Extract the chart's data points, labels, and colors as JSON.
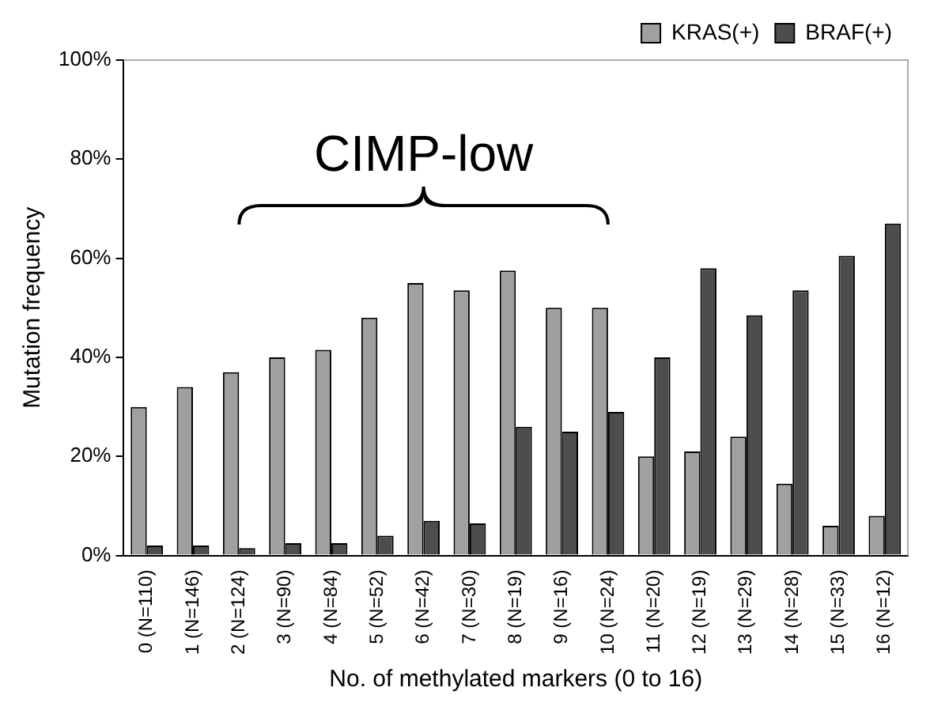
{
  "chart_data": {
    "type": "bar",
    "ylabel": "Mutation frequency",
    "xlabel": "No. of methylated markers (0 to 16)",
    "categories": [
      "0 (N=110)",
      "1 (N=146)",
      "2 (N=124)",
      "3 (N=90)",
      "4 (N=84)",
      "5 (N=52)",
      "6 (N=42)",
      "7 (N=30)",
      "8 (N=19)",
      "9 (N=16)",
      "10 (N=24)",
      "11 (N=20)",
      "12 (N=19)",
      "13 (N=29)",
      "14 (N=28)",
      "15 (N=33)",
      "16 (N=12)"
    ],
    "series": [
      {
        "name": "KRAS(+)",
        "color": "#a0a0a0",
        "values": [
          30,
          34,
          37,
          40,
          41.5,
          48,
          55,
          53.5,
          57.5,
          50,
          50,
          20,
          21,
          24,
          14.5,
          6,
          8
        ]
      },
      {
        "name": "BRAF(+)",
        "color": "#4d4d4d",
        "values": [
          2,
          2,
          1.5,
          2.5,
          2.5,
          4,
          7,
          6.5,
          26,
          25,
          29,
          40,
          58,
          48.5,
          53.5,
          60.5,
          67
        ]
      }
    ],
    "ylim": [
      0,
      100
    ],
    "yticks": [
      {
        "value": 0,
        "label": "0%"
      },
      {
        "value": 20,
        "label": "20%"
      },
      {
        "value": 40,
        "label": "40%"
      },
      {
        "value": 60,
        "label": "60%"
      },
      {
        "value": 80,
        "label": "80%"
      },
      {
        "value": 100,
        "label": "100%"
      }
    ],
    "annotations": [
      "CIMP-low"
    ],
    "grid": false,
    "legend": "top"
  }
}
